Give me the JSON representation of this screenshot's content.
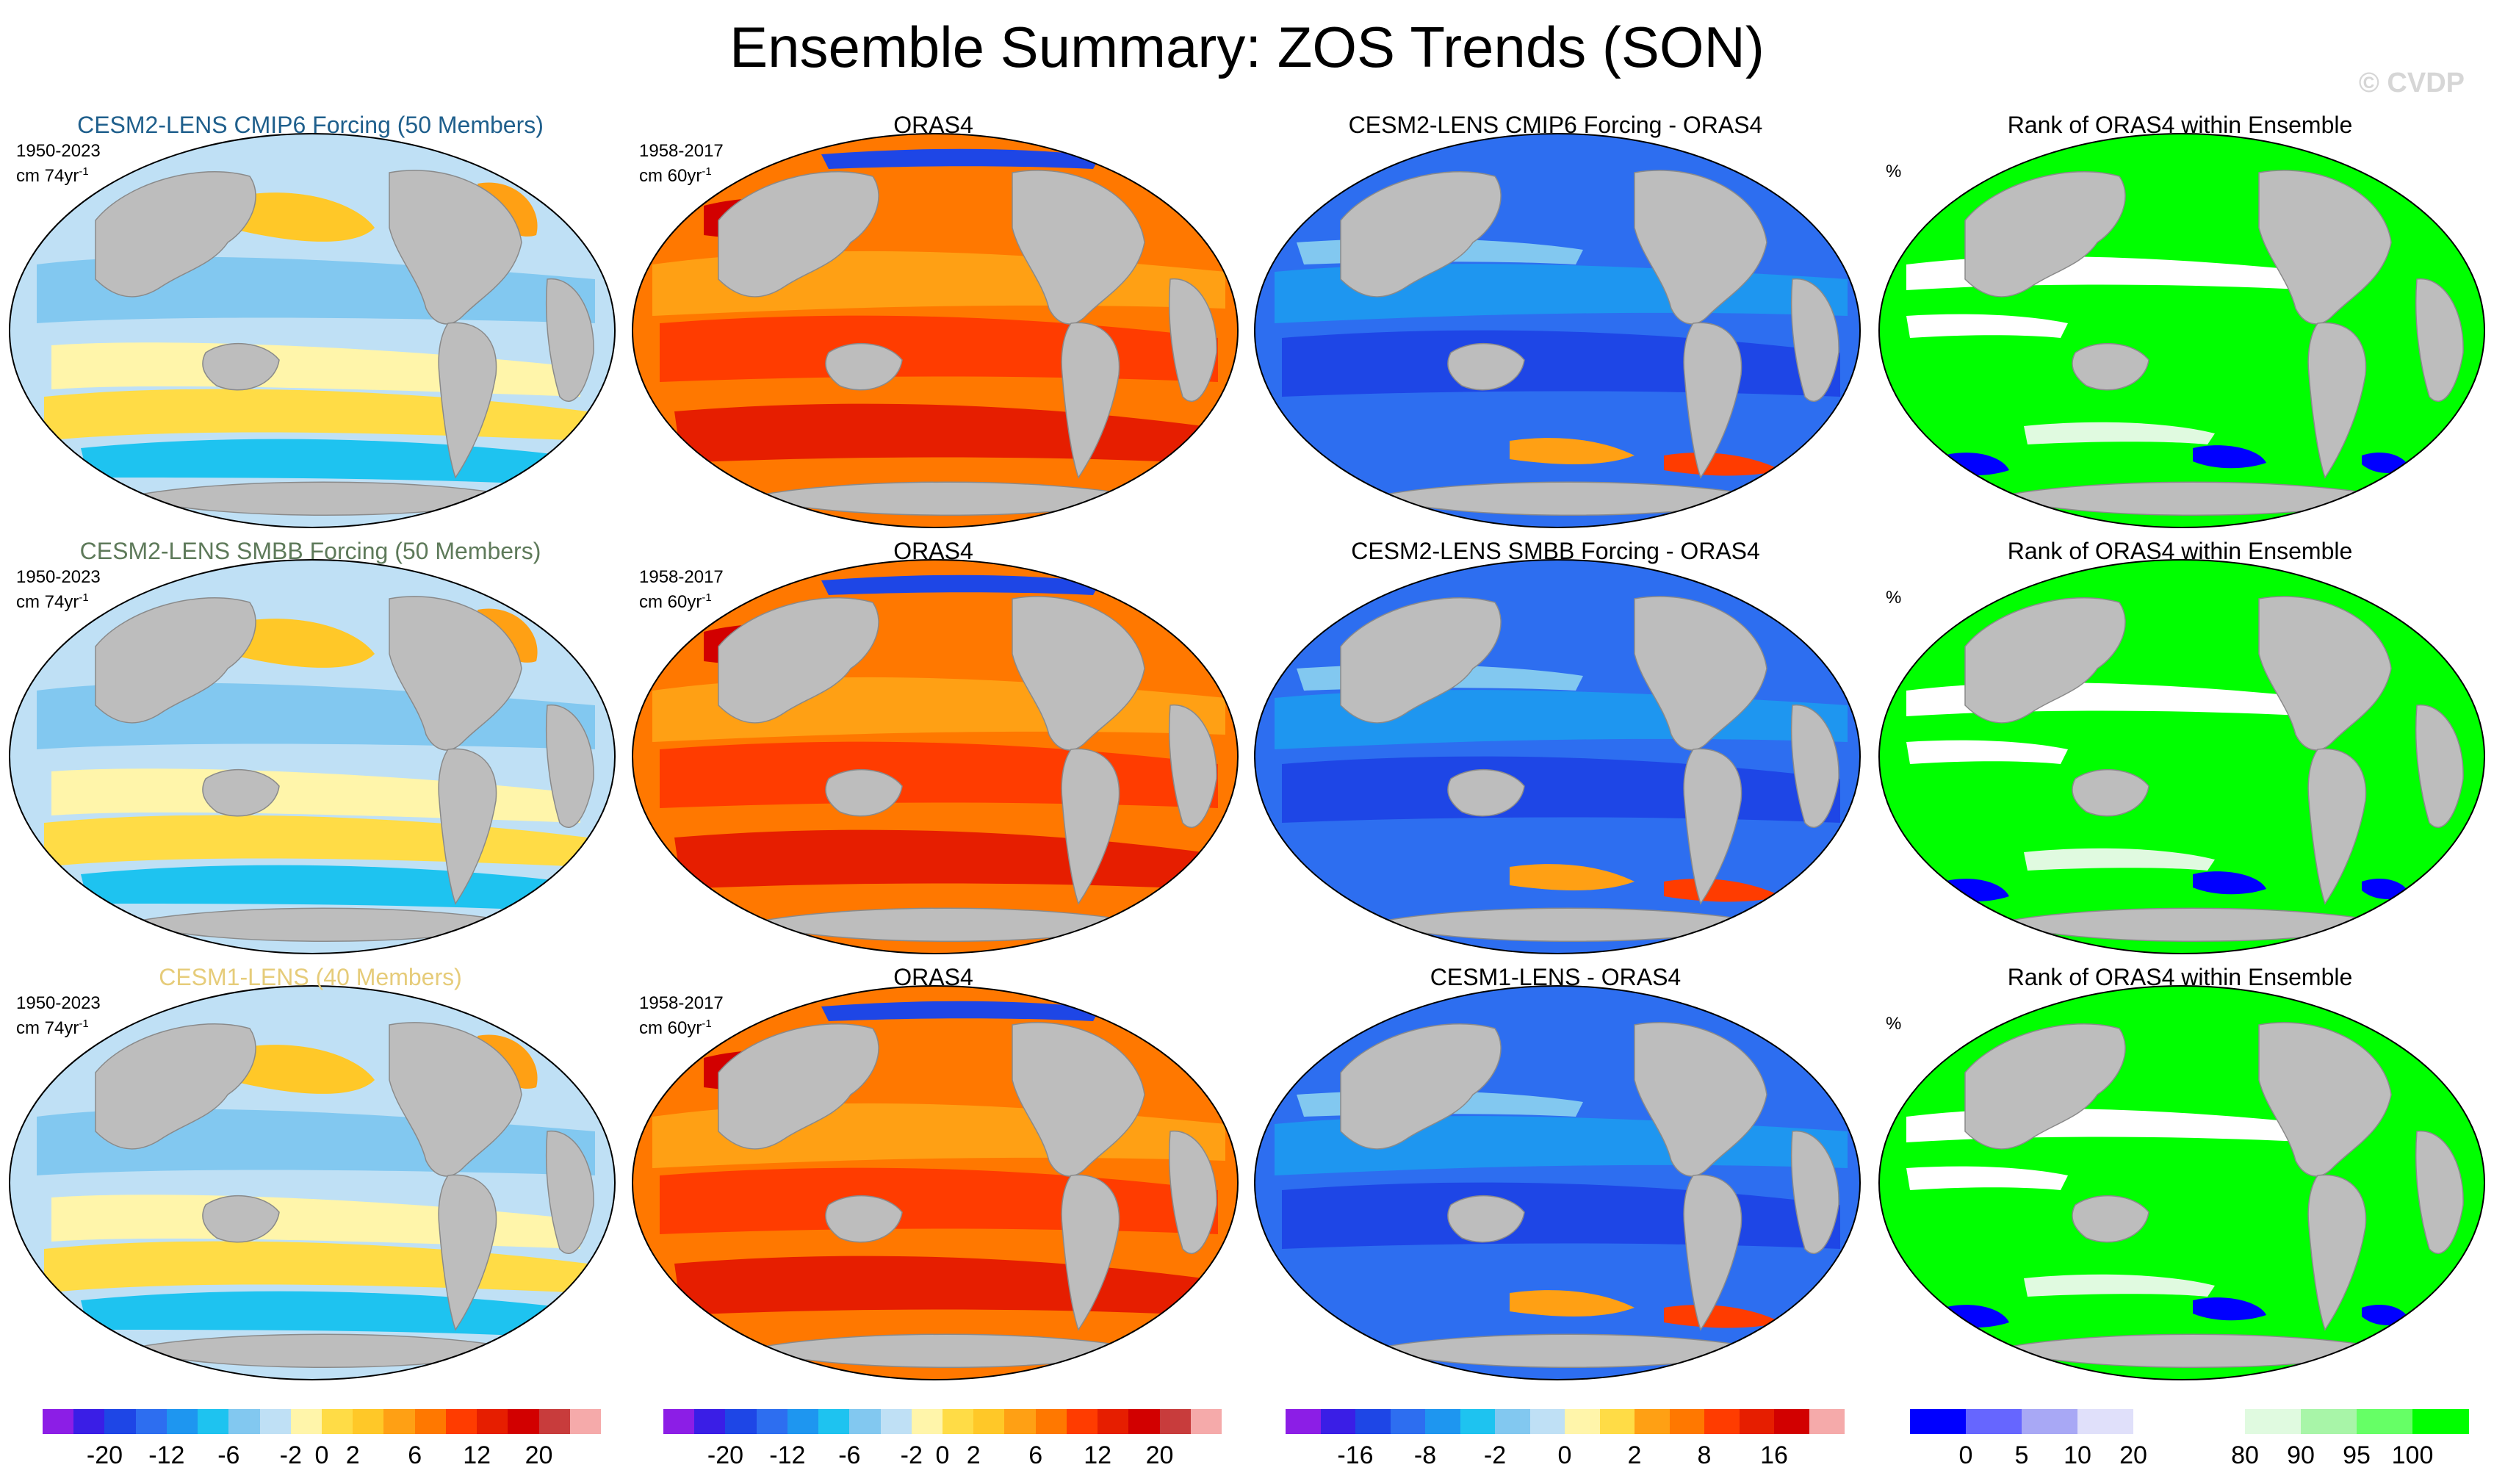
{
  "title": "Ensemble Summary: ZOS Trends (SON)",
  "watermark": "© CVDP",
  "colors": {
    "ocean_gray": "#c0c0c0",
    "land_gray": "#bdbdbd",
    "title_cmip6": "#1f5f8c",
    "title_smbb": "#5e7a5a",
    "title_cesm1": "#e6cc7a",
    "rank_green": "#00ff00"
  },
  "rows": [
    {
      "ensemble": {
        "title": "CESM2-LENS CMIP6 Forcing (50 Members)",
        "title_color": "#1f5f8c",
        "period": "1950-2023",
        "units": "cm 74yr",
        "units_sup": "-1"
      },
      "obs": {
        "title": "ORAS4",
        "period": "1958-2017",
        "units": "cm 60yr",
        "units_sup": "-1"
      },
      "diff": {
        "title": "CESM2-LENS CMIP6 Forcing - ORAS4"
      },
      "rank": {
        "title": "Rank of ORAS4 within Ensemble",
        "units": "%"
      }
    },
    {
      "ensemble": {
        "title": "CESM2-LENS SMBB Forcing (50 Members)",
        "title_color": "#5e7a5a",
        "period": "1950-2023",
        "units": "cm 74yr",
        "units_sup": "-1"
      },
      "obs": {
        "title": "ORAS4",
        "period": "1958-2017",
        "units": "cm 60yr",
        "units_sup": "-1"
      },
      "diff": {
        "title": "CESM2-LENS SMBB Forcing - ORAS4"
      },
      "rank": {
        "title": "Rank of ORAS4 within Ensemble",
        "units": "%"
      }
    },
    {
      "ensemble": {
        "title": "CESM1-LENS (40 Members)",
        "title_color": "#e6cc7a",
        "period": "1950-2023",
        "units": "cm 74yr",
        "units_sup": "-1"
      },
      "obs": {
        "title": "ORAS4",
        "period": "1958-2017",
        "units": "cm 60yr",
        "units_sup": "-1"
      },
      "diff": {
        "title": "CESM1-LENS - ORAS4"
      },
      "rank": {
        "title": "Rank of ORAS4 within Ensemble",
        "units": "%"
      }
    }
  ],
  "chart_data": [
    {
      "type": "colorbar",
      "name": "trend-colorbar-ensemble",
      "colors": [
        "#8c1ee6",
        "#3a1ee6",
        "#1e46e6",
        "#2d6ef0",
        "#1e96f0",
        "#1ec3f0",
        "#82c8f0",
        "#bfe0f5",
        "#fff5aa",
        "#ffdc46",
        "#ffc828",
        "#ffa014",
        "#ff7800",
        "#ff3c00",
        "#e61e00",
        "#d20000",
        "#c83c3c",
        "#f5aaaa"
      ],
      "tick_labels": [
        "-20",
        "-12",
        "-6",
        "-2",
        "0",
        "2",
        "6",
        "12",
        "20"
      ],
      "tick_positions": [
        2,
        4,
        6,
        8,
        9,
        10,
        12,
        14,
        16
      ]
    },
    {
      "type": "colorbar",
      "name": "trend-colorbar-obs",
      "colors": [
        "#8c1ee6",
        "#3a1ee6",
        "#1e46e6",
        "#2d6ef0",
        "#1e96f0",
        "#1ec3f0",
        "#82c8f0",
        "#bfe0f5",
        "#fff5aa",
        "#ffdc46",
        "#ffc828",
        "#ffa014",
        "#ff7800",
        "#ff3c00",
        "#e61e00",
        "#d20000",
        "#c83c3c",
        "#f5aaaa"
      ],
      "tick_labels": [
        "-20",
        "-12",
        "-6",
        "-2",
        "0",
        "2",
        "6",
        "12",
        "20"
      ],
      "tick_positions": [
        2,
        4,
        6,
        8,
        9,
        10,
        12,
        14,
        16
      ]
    },
    {
      "type": "colorbar",
      "name": "diff-colorbar",
      "colors": [
        "#8c1ee6",
        "#3a1ee6",
        "#1e46e6",
        "#2d6ef0",
        "#1e96f0",
        "#1ec3f0",
        "#82c8f0",
        "#bfe0f5",
        "#fff5aa",
        "#ffdc46",
        "#ffa014",
        "#ff7800",
        "#ff3c00",
        "#e61e00",
        "#d20000",
        "#f5aaaa"
      ],
      "tick_labels": [
        "-16",
        "-8",
        "-2",
        "0",
        "2",
        "8",
        "16"
      ],
      "tick_positions": [
        2,
        4,
        6,
        8,
        10,
        12,
        14
      ]
    },
    {
      "type": "colorbar",
      "name": "rank-colorbar",
      "colors": [
        "#0000ff",
        "#6666ff",
        "#a8a8f5",
        "#e0e0fa",
        "#ffffff",
        "#ffffff",
        "#e0fae0",
        "#a8f5a8",
        "#66ff66",
        "#00ff00"
      ],
      "tick_labels": [
        "0",
        "5",
        "10",
        "20",
        "80",
        "90",
        "95",
        "100"
      ],
      "tick_positions": [
        1,
        2,
        3,
        4,
        6,
        7,
        8,
        9
      ]
    }
  ]
}
